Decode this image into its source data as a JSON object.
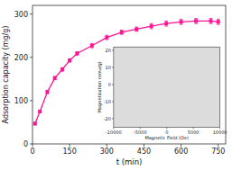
{
  "chart_data": [
    {
      "type": "line",
      "xlabel": "t (min)",
      "ylabel": "Adsorption capacity (mg/g)",
      "x": [
        10,
        30,
        60,
        90,
        120,
        150,
        180,
        240,
        300,
        360,
        420,
        480,
        540,
        600,
        660,
        720,
        750
      ],
      "values": [
        47,
        75,
        120,
        152,
        172,
        193,
        209,
        227,
        246,
        258,
        265,
        272,
        278,
        282,
        284,
        284,
        282
      ],
      "errors": [
        3,
        3,
        4,
        4,
        4,
        4,
        4,
        5,
        5,
        5,
        5,
        6,
        6,
        6,
        6,
        6,
        6
      ],
      "color": "#FF1493",
      "marker": "square",
      "grid": false,
      "xlim": [
        0,
        780
      ],
      "ylim": [
        0,
        320
      ],
      "xticks": [
        0,
        150,
        300,
        450,
        600,
        750
      ],
      "yticks": [
        0,
        100,
        200,
        300
      ]
    },
    {
      "type": "line",
      "xlabel": "Magnetic Field (Oe)",
      "ylabel": "Magnetization (emu/g)",
      "color": "#dcdcdc",
      "xlim": [
        -10000,
        10000
      ],
      "ylim": [
        -25,
        22
      ],
      "xticks": [
        -10000,
        -5000,
        0,
        5000,
        10000
      ],
      "yticks": [
        -20,
        -10,
        0,
        10,
        20
      ]
    }
  ]
}
